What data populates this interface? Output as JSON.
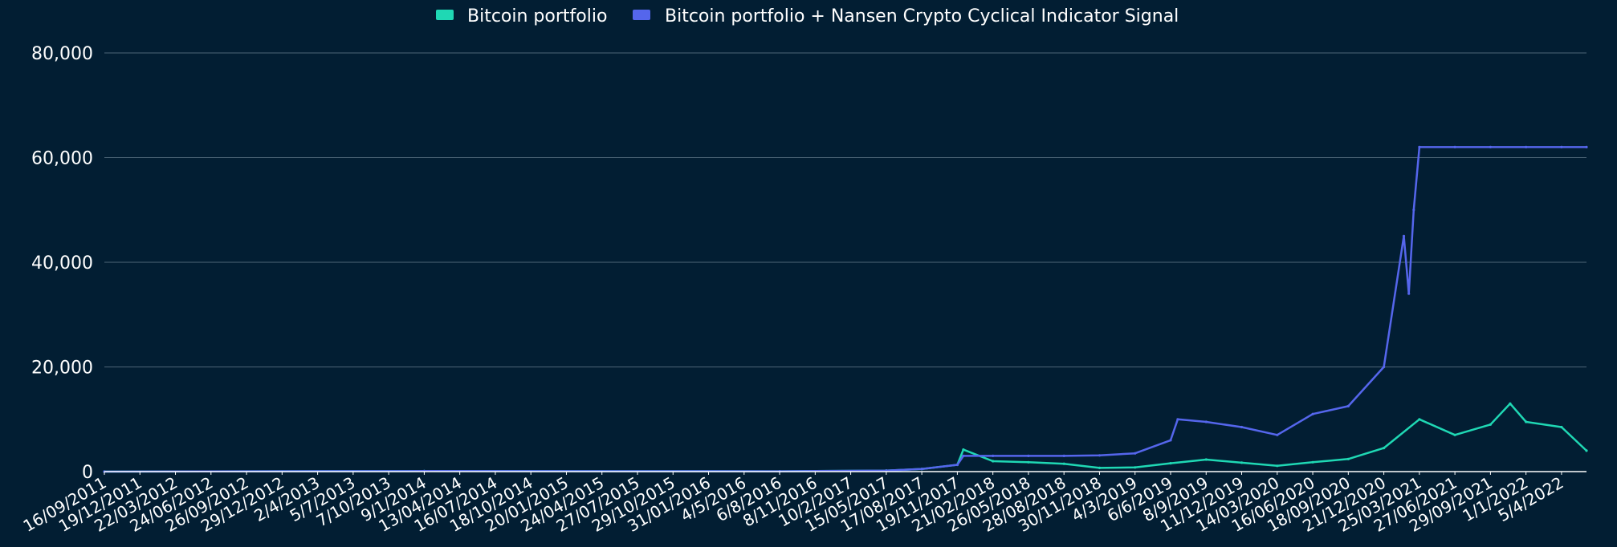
{
  "chart_data": {
    "type": "line",
    "title": "",
    "xlabel": "",
    "ylabel": "",
    "ylim": [
      0,
      80000
    ],
    "yticks": [
      0,
      20000,
      40000,
      60000,
      80000
    ],
    "ytick_labels": [
      "0",
      "20,000",
      "40,000",
      "60,000",
      "80,000"
    ],
    "grid": "horizontal",
    "legend_position": "top-center",
    "x_tick_labels": [
      "16/09/2011",
      "19/12/2011",
      "22/03/2012",
      "24/06/2012",
      "26/09/2012",
      "29/12/2012",
      "2/4/2013",
      "5/7/2013",
      "7/10/2013",
      "9/1/2014",
      "13/04/2014",
      "16/07/2014",
      "18/10/2014",
      "20/01/2015",
      "24/04/2015",
      "27/07/2015",
      "29/10/2015",
      "31/01/2016",
      "4/5/2016",
      "6/8/2016",
      "8/11/2016",
      "10/2/2017",
      "15/05/2017",
      "17/08/2017",
      "19/11/2017",
      "21/02/2018",
      "26/05/2018",
      "28/08/2018",
      "30/11/2018",
      "4/3/2019",
      "6/6/2019",
      "8/9/2019",
      "11/12/2019",
      "14/03/2020",
      "16/06/2020",
      "18/09/2020",
      "21/12/2020",
      "25/03/2021",
      "27/06/2021",
      "29/09/2021",
      "1/1/2022",
      "5/4/2022"
    ],
    "series": [
      {
        "name": "Bitcoin portfolio",
        "color": "#1fd8b4",
        "x": [
          "16/09/2011",
          "9/1/2014",
          "6/8/2016",
          "15/05/2017",
          "17/08/2017",
          "19/11/2017",
          "5/12/2017",
          "21/02/2018",
          "26/05/2018",
          "28/08/2018",
          "30/11/2018",
          "4/3/2019",
          "6/6/2019",
          "8/9/2019",
          "11/12/2019",
          "14/03/2020",
          "16/06/2020",
          "18/09/2020",
          "21/12/2020",
          "25/03/2021",
          "27/06/2021",
          "29/09/2021",
          "20/11/2021",
          "1/1/2022",
          "5/4/2022",
          "10/6/2022"
        ],
        "values": [
          0,
          100,
          60,
          200,
          500,
          1300,
          4200,
          2000,
          1800,
          1500,
          700,
          800,
          1600,
          2300,
          1700,
          1100,
          1800,
          2400,
          4500,
          10000,
          7000,
          9000,
          13000,
          9500,
          8500,
          4000
        ]
      },
      {
        "name": "Bitcoin portfolio + Nansen Crypto Cyclical Indicator Signal",
        "color": "#5566ec",
        "x": [
          "16/09/2011",
          "9/1/2014",
          "6/8/2016",
          "15/05/2017",
          "17/08/2017",
          "19/11/2017",
          "5/12/2017",
          "21/02/2018",
          "26/05/2018",
          "28/08/2018",
          "30/11/2018",
          "4/3/2019",
          "6/6/2019",
          "25/06/2019",
          "8/9/2019",
          "11/12/2019",
          "14/03/2020",
          "16/06/2020",
          "18/09/2020",
          "21/12/2020",
          "12/02/2021",
          "25/02/2021",
          "10/03/2021",
          "25/03/2021",
          "27/06/2021",
          "29/09/2021",
          "1/1/2022",
          "5/4/2022",
          "10/6/2022"
        ],
        "values": [
          0,
          100,
          60,
          200,
          500,
          1300,
          3000,
          3000,
          3000,
          3000,
          3100,
          3500,
          6000,
          10000,
          9500,
          8500,
          7000,
          11000,
          12500,
          20000,
          45000,
          34000,
          50000,
          62000,
          62000,
          62000,
          62000,
          62000,
          62000
        ]
      }
    ]
  }
}
